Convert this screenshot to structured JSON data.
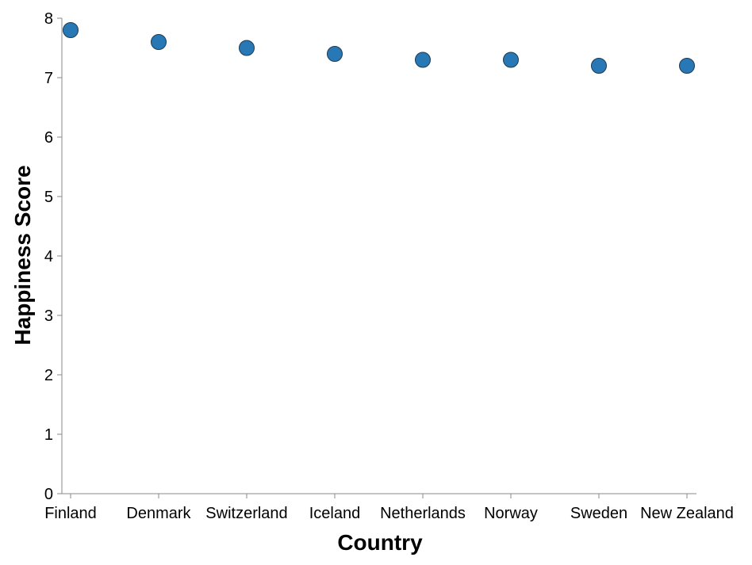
{
  "chart_data": {
    "type": "scatter",
    "title": "",
    "xlabel": "Country",
    "ylabel": "Happiness Score",
    "categories": [
      "Finland",
      "Denmark",
      "Switzerland",
      "Iceland",
      "Netherlands",
      "Norway",
      "Sweden",
      "New Zealand"
    ],
    "series": [
      {
        "values": [
          7.8,
          7.6,
          7.5,
          7.4,
          7.3,
          7.3,
          7.2,
          7.2
        ]
      }
    ],
    "ylim": [
      0,
      8
    ],
    "yticks": [
      "0",
      "1",
      "2",
      "3",
      "4",
      "5",
      "6",
      "7",
      "8"
    ],
    "grid": false,
    "legend": "none",
    "colors": {
      "point_fill": "#2878b5",
      "point_stroke": "#1f3b52",
      "axis": "#888888",
      "text": "#000000"
    }
  }
}
